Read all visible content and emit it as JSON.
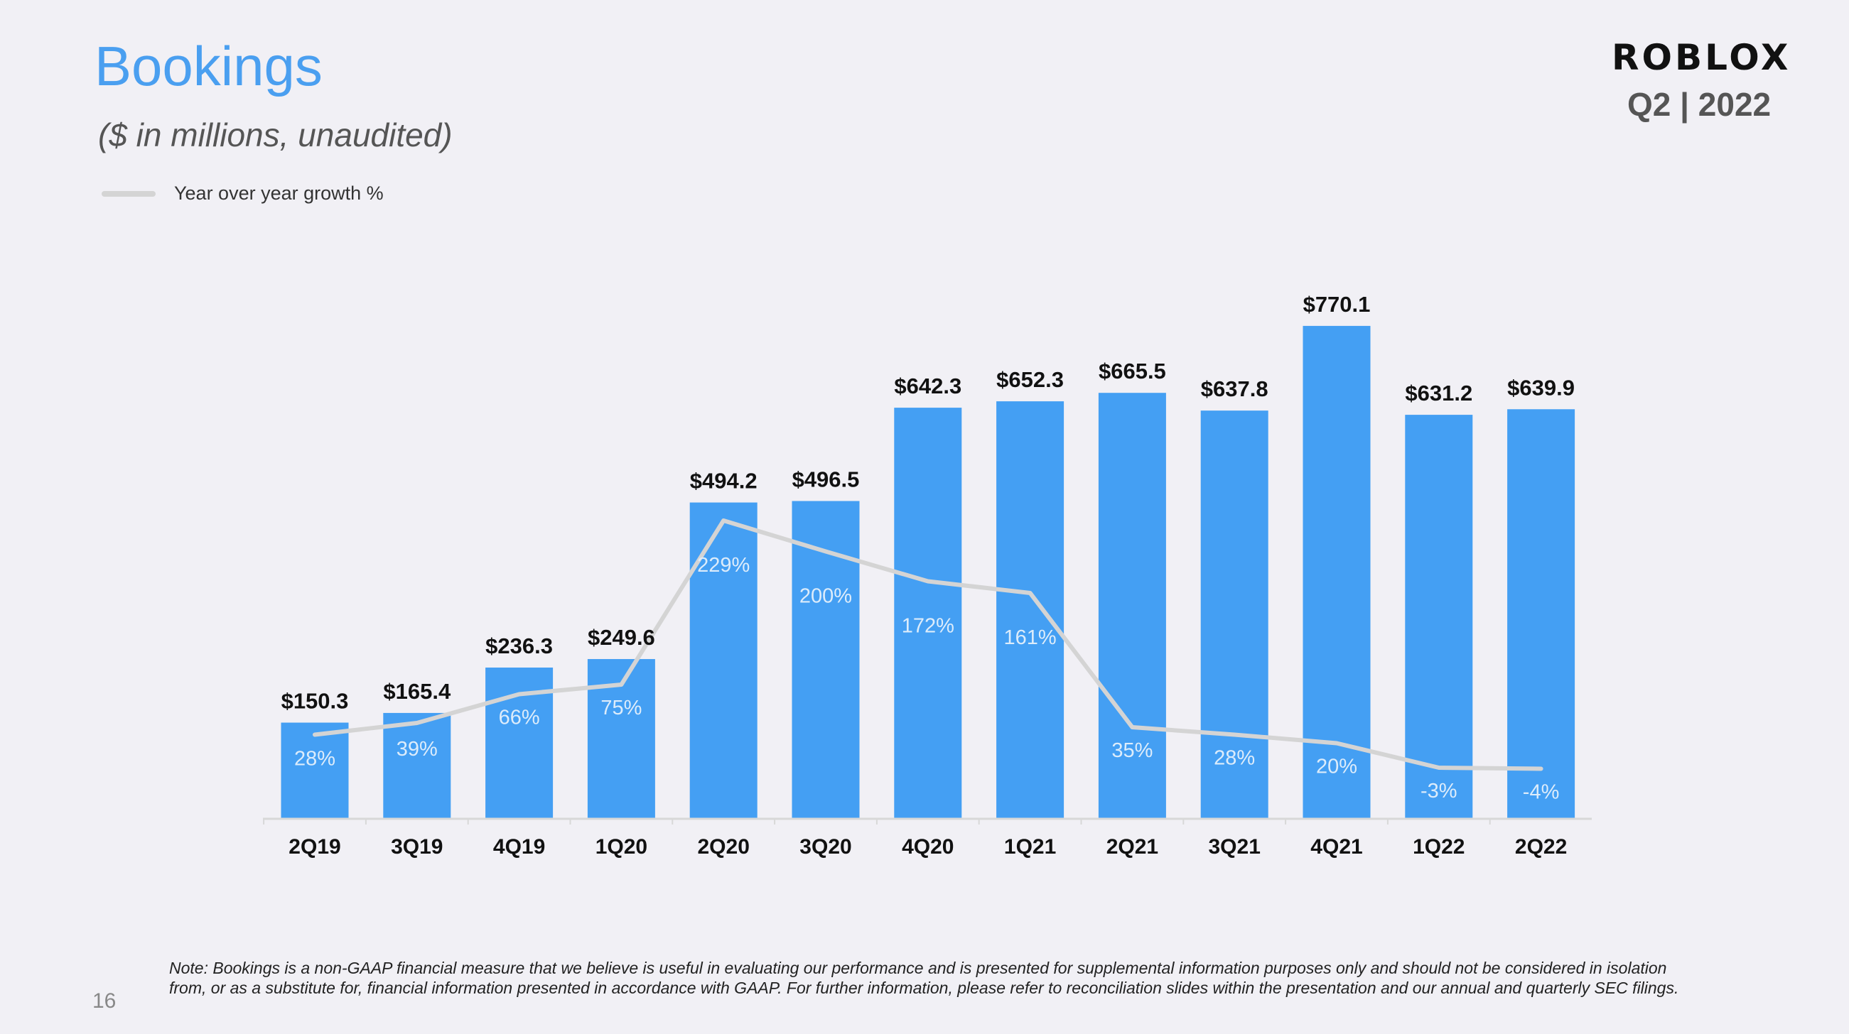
{
  "header": {
    "title": "Bookings",
    "subtitle": "($ in millions,  unaudited)",
    "logo": "ROBLOX",
    "period": "Q2 | 2022"
  },
  "legend": {
    "label": "Year over year growth %"
  },
  "colors": {
    "bar": "#449ff3",
    "line": "#d4d4d4",
    "title": "#4a9ff0",
    "background": "#f1f0f5"
  },
  "chart_data": {
    "type": "bar",
    "categories": [
      "2Q19",
      "3Q19",
      "4Q19",
      "1Q20",
      "2Q20",
      "3Q20",
      "4Q20",
      "1Q21",
      "2Q21",
      "3Q21",
      "4Q21",
      "1Q22",
      "2Q22"
    ],
    "series": [
      {
        "values": [
          150.3,
          165.4,
          236.3,
          249.6,
          494.2,
          496.5,
          642.3,
          652.3,
          665.5,
          637.8,
          770.1,
          631.2,
          639.9
        ],
        "labels": [
          "$150.3",
          "$165.4",
          "$236.3",
          "$249.6",
          "$494.2",
          "$496.5",
          "$642.3",
          "$652.3",
          "$665.5",
          "$637.8",
          "$770.1",
          "$631.2",
          "$639.9"
        ]
      },
      {
        "name": "Year over year growth %",
        "type": "line",
        "values": [
          28,
          39,
          66,
          75,
          229,
          200,
          172,
          161,
          35,
          28,
          20,
          -3,
          -4
        ],
        "labels": [
          "28%",
          "39%",
          "66%",
          "75%",
          "229%",
          "200%",
          "172%",
          "161%",
          "35%",
          "28%",
          "20%",
          "-3%",
          "-4%"
        ]
      }
    ],
    "ylim": [
      0,
      800
    ],
    "legend_position": "top-left",
    "grid": false
  },
  "footer": {
    "note": "Note: Bookings is a non-GAAP financial measure that we believe is useful in evaluating our performance and is presented for supplemental information purposes only and should not be considered in isolation from, or as a substitute for, financial information presented in accordance with GAAP. For further information, please refer to reconciliation slides within the presentation and our annual and quarterly SEC filings.",
    "page_number": "16"
  }
}
